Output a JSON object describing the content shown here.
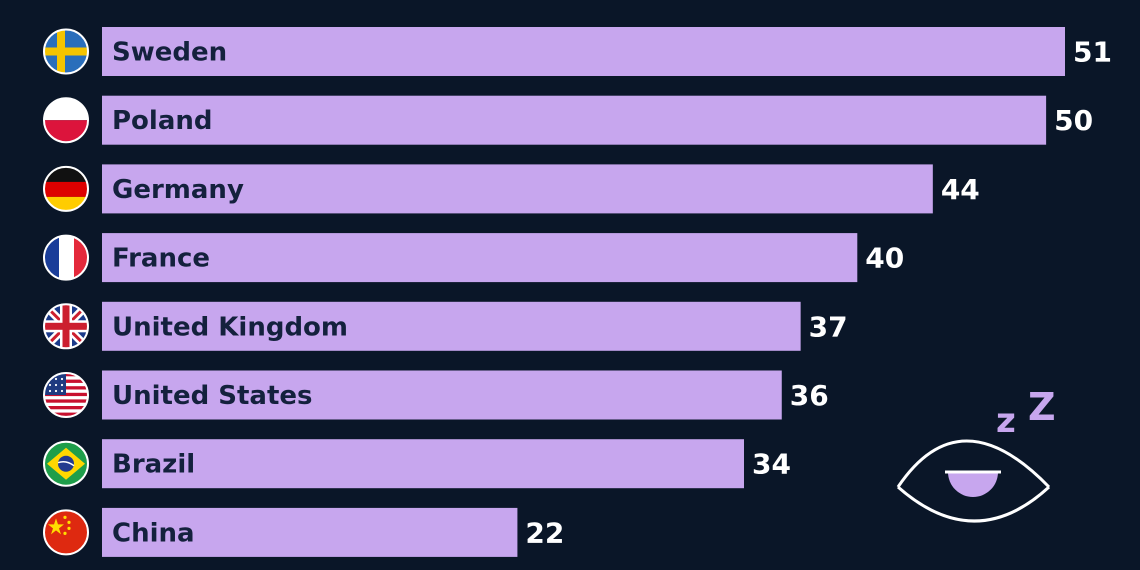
{
  "chart_data": {
    "type": "bar",
    "orientation": "horizontal",
    "categories": [
      "Sweden",
      "Poland",
      "Germany",
      "France",
      "United Kingdom",
      "United States",
      "Brazil",
      "China"
    ],
    "values": [
      51,
      50,
      44,
      40,
      37,
      36,
      34,
      22
    ],
    "title": "",
    "xlabel": "",
    "ylabel": "",
    "xlim": [
      0,
      51
    ],
    "grid": false,
    "legend": "none",
    "bar_color": "#c7a6ee",
    "flags": [
      "sweden-flag-icon",
      "poland-flag-icon",
      "germany-flag-icon",
      "france-flag-icon",
      "uk-flag-icon",
      "us-flag-icon",
      "brazil-flag-icon",
      "china-flag-icon"
    ]
  },
  "decoration": {
    "icon": "sleeping-eye-icon",
    "z_small": "z",
    "z_large": "Z"
  },
  "colors": {
    "background": "#0a1628",
    "bar": "#c7a6ee",
    "bar_text": "#14213d",
    "value_text": "#ffffff"
  }
}
